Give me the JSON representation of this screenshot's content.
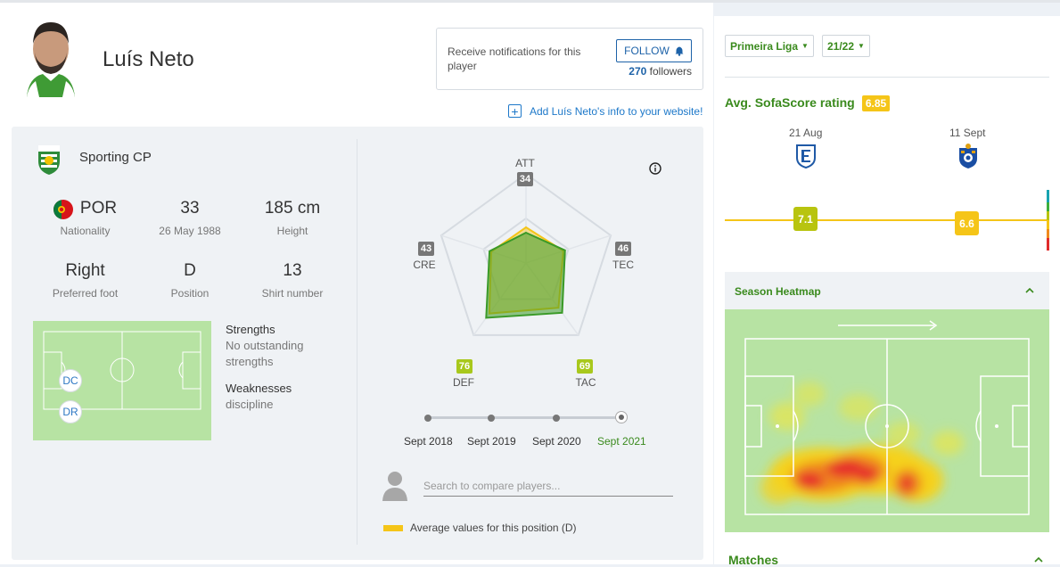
{
  "player": {
    "name": "Luís Neto"
  },
  "notify": {
    "text": "Receive notifications for this player",
    "follow_label": "FOLLOW",
    "followers_count": "270",
    "followers_label": "followers"
  },
  "add_info": {
    "label": "Add Luís Neto's info to your website!"
  },
  "team": {
    "name": "Sporting CP"
  },
  "stats": {
    "nationality_value": "POR",
    "nationality_label": "Nationality",
    "age_value": "33",
    "age_label": "26 May 1988",
    "height_value": "185 cm",
    "height_label": "Height",
    "foot_value": "Right",
    "foot_label": "Preferred foot",
    "position_value": "D",
    "position_label": "Position",
    "shirt_value": "13",
    "shirt_label": "Shirt number"
  },
  "positions": {
    "primary": "DC",
    "secondary": "DR"
  },
  "strengths": {
    "title": "Strengths",
    "text": "No outstanding strengths"
  },
  "weaknesses": {
    "title": "Weaknesses",
    "text": "discipline"
  },
  "radar": {
    "axes": [
      {
        "label": "ATT",
        "value": "34",
        "badge_color": "#777777"
      },
      {
        "label": "TEC",
        "value": "46",
        "badge_color": "#777777"
      },
      {
        "label": "TAC",
        "value": "69",
        "badge_color": "#a8c81c"
      },
      {
        "label": "DEF",
        "value": "76",
        "badge_color": "#a8c81c"
      },
      {
        "label": "CRE",
        "value": "43",
        "badge_color": "#777777"
      }
    ],
    "player_values": [
      34,
      46,
      69,
      76,
      43
    ],
    "average_values": [
      40,
      44,
      62,
      70,
      41
    ],
    "player_color": "#3a9a27",
    "average_color": "#f5c518"
  },
  "timeline": {
    "items": [
      "Sept 2018",
      "Sept 2019",
      "Sept 2020",
      "Sept 2021"
    ],
    "active_index": 3
  },
  "compare": {
    "placeholder": "Search to compare players..."
  },
  "legend": {
    "text": "Average values for this position (D)"
  },
  "filters": {
    "league": "Primeira Liga",
    "season": "21/22"
  },
  "avg_rating": {
    "title": "Avg. SofaScore rating",
    "value": "6.85"
  },
  "matches_ratings": [
    {
      "date": "21 Aug",
      "rating": "7.1",
      "color": "#b8c40f"
    },
    {
      "date": "11 Sept",
      "rating": "6.6",
      "color": "#f5c518"
    }
  ],
  "heatmap": {
    "title": "Season Heatmap"
  },
  "matches": {
    "title": "Matches"
  },
  "colors": {
    "accent_green": "#3a8a1d",
    "link_blue": "#1d78c9",
    "pitch_green": "#b7e3a3"
  }
}
